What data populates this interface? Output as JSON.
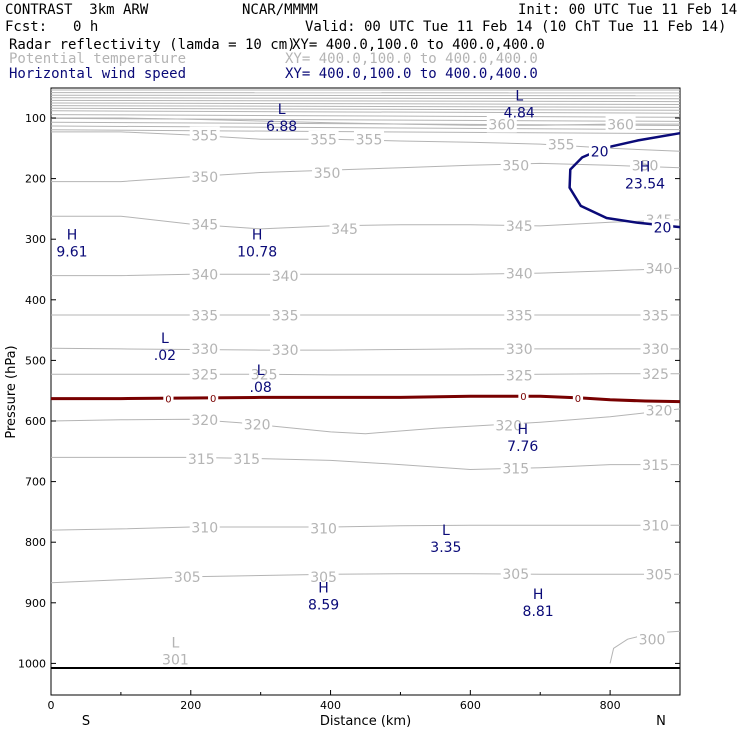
{
  "header": {
    "model": "CONTRAST  3km ARW",
    "org": "NCAR/MMMM",
    "init": "Init: 00 UTC Tue 11 Feb 14",
    "fcst_label": "Fcst:",
    "fcst_value": "0 h",
    "valid": "Valid: 00 UTC Tue 11 Feb 14 (10 ChT Tue 11 Feb 14)",
    "field1_name": "Radar reflectivity (lamda = 10 cm)",
    "field1_xy": "XY= 400.0,100.0 to 400.0,400.0",
    "field2_name": "Potential temperature",
    "field2_xy": "XY= 400.0,100.0 to 400.0,400.0",
    "field3_name": "Horizontal wind speed",
    "field3_xy": "XY= 400.0,100.0 to 400.0,400.0"
  },
  "colors": {
    "theta": "#b4b4b4",
    "wind": "#0a0a78",
    "reflectivity": "#780000",
    "axes": "#000000"
  },
  "chart_data": {
    "type": "contour-cross-section",
    "xlabel": "Distance (km)",
    "ylabel": "Pressure (hPa)",
    "xlim": [
      0,
      900
    ],
    "ylim": [
      1050,
      50
    ],
    "x_ticks": [
      0,
      200,
      400,
      600,
      800
    ],
    "y_ticks": [
      100,
      200,
      300,
      400,
      500,
      600,
      700,
      800,
      900,
      1000
    ],
    "x_end_labels": {
      "left": "S",
      "right": "N"
    },
    "theta_contours": [
      {
        "level": 300,
        "points": [
          [
            800,
            1000
          ],
          [
            805,
            975
          ],
          [
            825,
            960
          ],
          [
            860,
            950
          ],
          [
            900,
            947
          ]
        ],
        "labels": [
          [
            860,
            960
          ]
        ]
      },
      {
        "level": 305,
        "points": [
          [
            0,
            867
          ],
          [
            100,
            862
          ],
          [
            200,
            857
          ],
          [
            300,
            855
          ],
          [
            400,
            853
          ],
          [
            500,
            852
          ],
          [
            600,
            852
          ],
          [
            700,
            853
          ],
          [
            800,
            853
          ],
          [
            900,
            853
          ]
        ],
        "labels": [
          [
            195,
            857
          ],
          [
            390,
            857
          ],
          [
            665,
            852
          ],
          [
            870,
            853
          ]
        ]
      },
      {
        "level": 310,
        "points": [
          [
            0,
            780
          ],
          [
            100,
            778
          ],
          [
            200,
            775
          ],
          [
            300,
            775
          ],
          [
            400,
            775
          ],
          [
            500,
            773
          ],
          [
            600,
            772
          ],
          [
            700,
            772
          ],
          [
            800,
            772
          ],
          [
            900,
            772
          ]
        ],
        "labels": [
          [
            220,
            775
          ],
          [
            390,
            777
          ],
          [
            865,
            772
          ]
        ]
      },
      {
        "level": 315,
        "points": [
          [
            0,
            660
          ],
          [
            100,
            660
          ],
          [
            200,
            660
          ],
          [
            300,
            662
          ],
          [
            400,
            665
          ],
          [
            500,
            672
          ],
          [
            600,
            680
          ],
          [
            700,
            677
          ],
          [
            800,
            672
          ],
          [
            900,
            672
          ]
        ],
        "labels": [
          [
            215,
            662
          ],
          [
            280,
            662
          ],
          [
            665,
            678
          ],
          [
            865,
            672
          ]
        ]
      },
      {
        "level": 320,
        "points": [
          [
            0,
            600
          ],
          [
            100,
            598
          ],
          [
            200,
            597
          ],
          [
            270,
            603
          ],
          [
            400,
            618
          ],
          [
            450,
            621
          ],
          [
            550,
            612
          ],
          [
            700,
            602
          ],
          [
            800,
            593
          ],
          [
            900,
            580
          ]
        ],
        "labels": [
          [
            220,
            598
          ],
          [
            295,
            605
          ],
          [
            655,
            607
          ],
          [
            870,
            582
          ]
        ]
      },
      {
        "level": 325,
        "points": [
          [
            0,
            523
          ],
          [
            100,
            523
          ],
          [
            200,
            523
          ],
          [
            300,
            523
          ],
          [
            400,
            524
          ],
          [
            500,
            524
          ],
          [
            600,
            524
          ],
          [
            700,
            523
          ],
          [
            800,
            522
          ],
          [
            900,
            522
          ]
        ],
        "labels": [
          [
            220,
            523
          ],
          [
            305,
            523
          ],
          [
            670,
            524
          ],
          [
            865,
            522
          ]
        ]
      },
      {
        "level": 330,
        "points": [
          [
            0,
            480
          ],
          [
            100,
            481
          ],
          [
            200,
            482
          ],
          [
            300,
            483
          ],
          [
            400,
            483
          ],
          [
            500,
            482
          ],
          [
            600,
            481
          ],
          [
            700,
            481
          ],
          [
            800,
            481
          ],
          [
            900,
            481
          ]
        ],
        "labels": [
          [
            220,
            481
          ],
          [
            335,
            482
          ],
          [
            670,
            481
          ],
          [
            865,
            481
          ]
        ]
      },
      {
        "level": 335,
        "points": [
          [
            0,
            425
          ],
          [
            100,
            425
          ],
          [
            200,
            425
          ],
          [
            300,
            425
          ],
          [
            400,
            425
          ],
          [
            500,
            425
          ],
          [
            600,
            425
          ],
          [
            700,
            425
          ],
          [
            800,
            425
          ],
          [
            900,
            425
          ]
        ],
        "labels": [
          [
            220,
            425
          ],
          [
            335,
            425
          ],
          [
            670,
            425
          ],
          [
            865,
            425
          ]
        ]
      },
      {
        "level": 340,
        "points": [
          [
            0,
            360
          ],
          [
            100,
            360
          ],
          [
            200,
            358
          ],
          [
            300,
            358
          ],
          [
            400,
            358
          ],
          [
            500,
            358
          ],
          [
            600,
            358
          ],
          [
            700,
            356
          ],
          [
            800,
            352
          ],
          [
            900,
            348
          ]
        ],
        "labels": [
          [
            220,
            358
          ],
          [
            335,
            360
          ],
          [
            670,
            356
          ],
          [
            870,
            348
          ]
        ]
      },
      {
        "level": 345,
        "points": [
          [
            0,
            262
          ],
          [
            100,
            262
          ],
          [
            200,
            275
          ],
          [
            300,
            283
          ],
          [
            400,
            278
          ],
          [
            500,
            276
          ],
          [
            600,
            276
          ],
          [
            700,
            278
          ],
          [
            800,
            272
          ],
          [
            900,
            268
          ]
        ],
        "labels": [
          [
            220,
            275
          ],
          [
            420,
            283
          ],
          [
            670,
            278
          ],
          [
            870,
            268
          ]
        ]
      },
      {
        "level": 350,
        "points": [
          [
            0,
            205
          ],
          [
            100,
            205
          ],
          [
            200,
            197
          ],
          [
            300,
            190
          ],
          [
            400,
            186
          ],
          [
            500,
            182
          ],
          [
            600,
            178
          ],
          [
            700,
            175
          ],
          [
            800,
            178
          ],
          [
            900,
            182
          ]
        ],
        "labels": [
          [
            220,
            197
          ],
          [
            395,
            190
          ],
          [
            665,
            178
          ],
          [
            850,
            178
          ]
        ]
      },
      {
        "level": 355,
        "points": [
          [
            0,
            123
          ],
          [
            100,
            123
          ],
          [
            200,
            128
          ],
          [
            300,
            135
          ],
          [
            400,
            135
          ],
          [
            500,
            138
          ],
          [
            600,
            140
          ],
          [
            700,
            143
          ],
          [
            800,
            150
          ],
          [
            900,
            155
          ]
        ],
        "labels": [
          [
            220,
            128
          ],
          [
            390,
            135
          ],
          [
            455,
            135
          ],
          [
            730,
            143
          ]
        ]
      },
      {
        "level": 360,
        "points": [
          [
            0,
            100
          ],
          [
            100,
            100
          ],
          [
            200,
            102
          ],
          [
            300,
            105
          ],
          [
            400,
            108
          ],
          [
            500,
            110
          ],
          [
            600,
            112
          ],
          [
            700,
            112
          ],
          [
            800,
            110
          ],
          [
            900,
            110
          ]
        ],
        "labels": [
          [
            645,
            110
          ],
          [
            815,
            110
          ]
        ]
      }
    ],
    "wind_contours": [
      {
        "level": 20,
        "points": [
          [
            900,
            125
          ],
          [
            840,
            137
          ],
          [
            790,
            150
          ],
          [
            760,
            165
          ],
          [
            743,
            185
          ],
          [
            742,
            215
          ],
          [
            758,
            245
          ],
          [
            795,
            265
          ],
          [
            840,
            273
          ],
          [
            900,
            280
          ]
        ],
        "labels": [
          [
            785,
            155
          ],
          [
            875,
            280
          ]
        ]
      }
    ],
    "reflectivity_contours": [
      {
        "level": 0,
        "points": [
          [
            0,
            563
          ],
          [
            100,
            563
          ],
          [
            200,
            562
          ],
          [
            300,
            561
          ],
          [
            400,
            561
          ],
          [
            500,
            561
          ],
          [
            600,
            559
          ],
          [
            700,
            559
          ],
          [
            760,
            562
          ],
          [
            800,
            565
          ],
          [
            850,
            567
          ],
          [
            900,
            568
          ]
        ],
        "labels": [
          [
            168,
            563
          ],
          [
            232,
            562
          ],
          [
            676,
            559
          ],
          [
            754,
            562
          ]
        ]
      }
    ],
    "extrema": [
      {
        "type": "L",
        "value": "6.88",
        "x": 330,
        "p": 100,
        "color": "wind"
      },
      {
        "type": "L",
        "value": "4.84",
        "x": 670,
        "p": 78,
        "color": "wind"
      },
      {
        "type": "H",
        "value": "23.54",
        "x": 850,
        "p": 195,
        "color": "wind"
      },
      {
        "type": "H",
        "value": "9.61",
        "x": 30,
        "p": 307,
        "color": "wind"
      },
      {
        "type": "H",
        "value": "10.78",
        "x": 295,
        "p": 307,
        "color": "wind"
      },
      {
        "type": "L",
        "value": ".02",
        "x": 163,
        "p": 478,
        "color": "wind"
      },
      {
        "type": "L",
        "value": ".08",
        "x": 300,
        "p": 531,
        "color": "wind"
      },
      {
        "type": "H",
        "value": "7.76",
        "x": 675,
        "p": 628,
        "color": "wind"
      },
      {
        "type": "L",
        "value": "3.35",
        "x": 565,
        "p": 795,
        "color": "wind"
      },
      {
        "type": "H",
        "value": "8.59",
        "x": 390,
        "p": 890,
        "color": "wind"
      },
      {
        "type": "H",
        "value": "8.81",
        "x": 697,
        "p": 900,
        "color": "wind"
      },
      {
        "type": "L",
        "value": "301",
        "x": 178,
        "p": 980,
        "color": "theta"
      }
    ]
  }
}
